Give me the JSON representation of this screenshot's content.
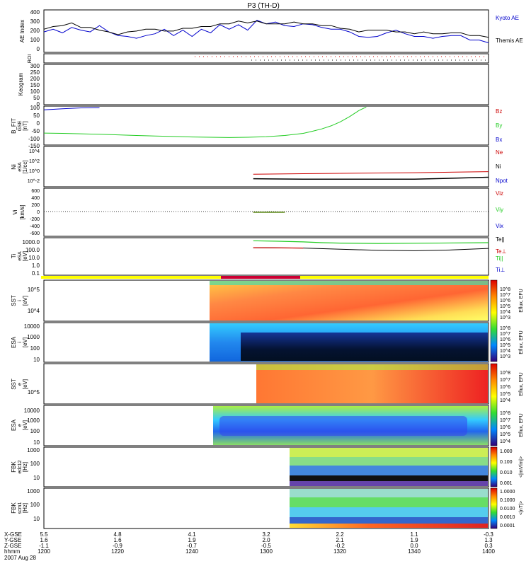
{
  "title": "P3 (TH-D)",
  "date": "2007 Aug 28",
  "colors": {
    "red": "#cc0000",
    "green": "#22cc22",
    "blue": "#0000cc",
    "black": "#000000",
    "yellow": "#ffff00",
    "crimson": "#cc0033"
  },
  "panels": {
    "ae": {
      "ylabel": "AE Index",
      "ticks": [
        "400",
        "300",
        "200",
        "100",
        "0"
      ],
      "legend": [
        "Kyoto AE",
        "Themis AE"
      ]
    },
    "roi": {
      "ylabel": "ROI"
    },
    "keogram": {
      "ylabel": "Keogram",
      "ticks": [
        "300",
        "250",
        "200",
        "150",
        "100",
        "50",
        "0"
      ]
    },
    "bfit": {
      "ylabel1": "B_FIT",
      "ylabel2": "GSE",
      "ylabel3": "[nT]",
      "ticks": [
        "100",
        "50",
        "0",
        "-50",
        "-100",
        "-150"
      ],
      "legend": [
        "Bz",
        "By",
        "Bx"
      ]
    },
    "ni": {
      "ylabel1": "Ni",
      "ylabel2": "eSA",
      "ylabel3": "[1/cc]",
      "ticks": [
        "10^4",
        "10^2",
        "10^0",
        "10^-2"
      ],
      "legend": [
        "Ne",
        "Ni",
        "Npot"
      ]
    },
    "vi": {
      "ylabel1": "Vi",
      "ylabel2": "[km/s]",
      "ticks": [
        "600",
        "400",
        "200",
        "0",
        "-200",
        "-400",
        "-600"
      ],
      "legend": [
        "Viz",
        "Viy",
        "Vix"
      ]
    },
    "ti": {
      "ylabel1": "Ti",
      "ylabel2": "eSA",
      "ylabel3": "[eV]",
      "ticks": [
        "1000.0",
        "100.0",
        "10.0",
        "1.0",
        "0.1"
      ],
      "legend": [
        "Te||",
        "Te⊥",
        "Ti||",
        "Ti⊥"
      ]
    },
    "sst_i": {
      "ylabel1": "SST",
      "ylabel2": "i",
      "ylabel3": "[eV]",
      "ticks": [
        "10^5",
        "10^4"
      ],
      "cbar_labels": [
        "10^8",
        "10^7",
        "10^6",
        "10^5",
        "10^4",
        "10^3"
      ],
      "cbar_title": "Eflux, EFU"
    },
    "esa_i": {
      "ylabel1": "ESA",
      "ylabel2": "i",
      "ylabel3": "[eV]",
      "ticks": [
        "10000",
        "1000",
        "100",
        "10"
      ],
      "cbar_labels": [
        "10^8",
        "10^7",
        "10^6",
        "10^5",
        "10^4",
        "10^3"
      ],
      "cbar_title": "Eflux, EFU"
    },
    "sst_e": {
      "ylabel1": "SST",
      "ylabel2": "e",
      "ylabel3": "[eV]",
      "ticks": [
        "10^5"
      ],
      "cbar_labels": [
        "10^8",
        "10^7",
        "10^6",
        "10^5",
        "10^4"
      ],
      "cbar_title": "Eflux, EFU"
    },
    "esa_e": {
      "ylabel1": "ESA",
      "ylabel2": "e",
      "ylabel3": "[eV]",
      "ticks": [
        "10000",
        "1000",
        "100",
        "10"
      ],
      "cbar_labels": [
        "10^8",
        "10^7",
        "10^6",
        "10^5",
        "10^4"
      ],
      "cbar_title": "Eflux, EFU"
    },
    "fbk_e": {
      "ylabel1": "FBK",
      "ylabel2": "edc12",
      "ylabel3": "[Hz]",
      "ticks": [
        "1000",
        "100",
        "10"
      ],
      "cbar_labels": [
        "1.000",
        "0.100",
        "0.010",
        "0.001"
      ],
      "cbar_title": "<|mV/m|>"
    },
    "fbk_b": {
      "ylabel1": "FBK",
      "ylabel2": "scm1",
      "ylabel3": "[Hz]",
      "ticks": [
        "1000",
        "100",
        "10"
      ],
      "cbar_labels": [
        "1.0000",
        "0.1000",
        "0.0100",
        "0.0010",
        "0.0001"
      ],
      "cbar_title": "<|nT|>"
    }
  },
  "xaxis": {
    "rows": [
      {
        "label": "X-GSE",
        "values": [
          "5.5",
          "4.8",
          "4.1",
          "3.2",
          "2.2",
          "1.1",
          "-0.3"
        ]
      },
      {
        "label": "Y-GSE",
        "values": [
          "1.6",
          "1.6",
          "1.9",
          "2.0",
          "2.1",
          "1.9",
          "1.3"
        ]
      },
      {
        "label": "Z-GSE",
        "values": [
          "-1.1",
          "-0.9",
          "-0.7",
          "-0.5",
          "-0.2",
          "0.0",
          "0.3"
        ]
      },
      {
        "label": "hhmm",
        "values": [
          "1200",
          "1220",
          "1240",
          "1300",
          "1320",
          "1340",
          "1400"
        ]
      }
    ]
  },
  "chart_data": [
    {
      "type": "line",
      "title": "AE Index",
      "x_unit": "minutes after 12:00 UT",
      "ylim": [
        -20,
        450
      ],
      "series": [
        {
          "name": "Kyoto AE",
          "color": "#0000cc",
          "x": [
            0,
            5,
            10,
            15,
            20,
            25,
            30,
            35,
            40,
            45,
            50,
            55,
            60,
            65,
            70,
            75,
            80,
            85,
            90,
            95,
            100,
            105,
            110,
            115,
            120,
            125,
            130,
            135,
            140,
            145,
            150,
            155,
            160,
            165,
            170,
            175,
            180,
            185,
            190,
            195,
            200,
            205,
            210,
            215,
            220,
            225,
            230,
            235,
            240
          ],
          "values": [
            210,
            230,
            200,
            250,
            230,
            200,
            280,
            200,
            170,
            150,
            140,
            160,
            190,
            230,
            170,
            220,
            160,
            230,
            200,
            280,
            240,
            280,
            230,
            330,
            300,
            310,
            280,
            260,
            300,
            280,
            260,
            230,
            240,
            200,
            160,
            140,
            160,
            190,
            230,
            180,
            160,
            150,
            140,
            150,
            170,
            160,
            120,
            110,
            90
          ]
        },
        {
          "name": "Themis AE",
          "color": "#000000",
          "x": [
            0,
            5,
            10,
            15,
            20,
            25,
            30,
            35,
            40,
            45,
            50,
            55,
            60,
            65,
            70,
            75,
            80,
            85,
            90,
            95,
            100,
            105,
            110,
            115,
            120,
            125,
            130,
            135,
            140,
            145,
            150,
            155,
            160,
            165,
            170,
            175,
            180,
            185,
            190,
            195,
            200,
            205,
            210,
            215,
            220,
            225,
            230,
            235,
            240
          ],
          "values": [
            240,
            260,
            280,
            300,
            260,
            250,
            230,
            200,
            180,
            200,
            220,
            230,
            240,
            210,
            220,
            240,
            250,
            260,
            270,
            290,
            300,
            320,
            310,
            320,
            300,
            290,
            300,
            310,
            300,
            290,
            280,
            270,
            250,
            230,
            210,
            220,
            230,
            220,
            210,
            200,
            190,
            200,
            190,
            180,
            200,
            190,
            170,
            160,
            150
          ]
        }
      ]
    },
    {
      "type": "line",
      "title": "B_FIT GSE [nT]",
      "x_unit": "minutes after 12:00 UT",
      "ylim": [
        -150,
        110
      ],
      "series": [
        {
          "name": "By",
          "color": "#22cc22",
          "x": [
            0,
            10,
            20,
            30,
            40,
            50,
            60,
            70,
            80,
            90,
            100,
            110,
            120,
            130,
            140,
            145,
            150,
            155,
            160,
            165,
            170,
            174
          ],
          "values": [
            -70,
            -72,
            -75,
            -78,
            -82,
            -86,
            -90,
            -93,
            -96,
            -98,
            -100,
            -98,
            -94,
            -86,
            -72,
            -58,
            -42,
            -22,
            5,
            40,
            80,
            104
          ]
        },
        {
          "name": "Bx",
          "color": "#0000cc",
          "x": [
            0,
            10,
            20,
            30
          ],
          "values": [
            85,
            92,
            98,
            100
          ]
        }
      ]
    },
    {
      "type": "line",
      "title": "Ni eSA [1/cc]",
      "x_unit": "minutes after 12:00 UT",
      "y_scale": "log10",
      "ylim": [
        -3,
        5
      ],
      "series": [
        {
          "name": "Ne",
          "color": "#cc0000",
          "x": [
            113,
            140,
            170,
            200,
            240
          ],
          "values": [
            -0.5,
            -0.4,
            -0.3,
            -0.2,
            0
          ]
        },
        {
          "name": "Ni",
          "color": "#000000",
          "x": [
            113,
            140,
            170,
            200,
            240
          ],
          "values": [
            -1.4,
            -1.5,
            -1.5,
            -1.5,
            -1.1
          ]
        }
      ]
    },
    {
      "type": "line",
      "title": "Vi [km/s]",
      "x_unit": "minutes after 12:00 UT",
      "ylim": [
        -700,
        700
      ],
      "series": [
        {
          "name": "Viz",
          "color": "#cc0000",
          "x": [
            113,
            130
          ],
          "values": [
            0,
            0
          ]
        },
        {
          "name": "Viy",
          "color": "#22cc22",
          "x": [
            113,
            130
          ],
          "values": [
            0,
            0
          ]
        }
      ]
    },
    {
      "type": "line",
      "title": "Ti eSA [eV]",
      "x_unit": "minutes after 12:00 UT",
      "y_scale": "log10",
      "ylim": [
        -1.3,
        3.6
      ],
      "series": [
        {
          "name": "Ti||",
          "color": "#22cc22",
          "x": [
            113,
            125,
            140,
            150,
            160,
            180,
            200,
            240
          ],
          "values": [
            3.2,
            3.15,
            3.05,
            2.95,
            2.9,
            2.85,
            2.88,
            2.95
          ]
        },
        {
          "name": "Te||",
          "color": "#000000",
          "x": [
            113,
            140,
            160,
            180,
            200,
            220,
            240
          ],
          "values": [
            2.3,
            2.25,
            2.1,
            1.95,
            1.9,
            2.0,
            2.2
          ]
        },
        {
          "name": "Te⊥",
          "color": "#cc0000",
          "x": [
            113,
            140
          ],
          "values": [
            2.3,
            2.25
          ]
        }
      ]
    }
  ]
}
